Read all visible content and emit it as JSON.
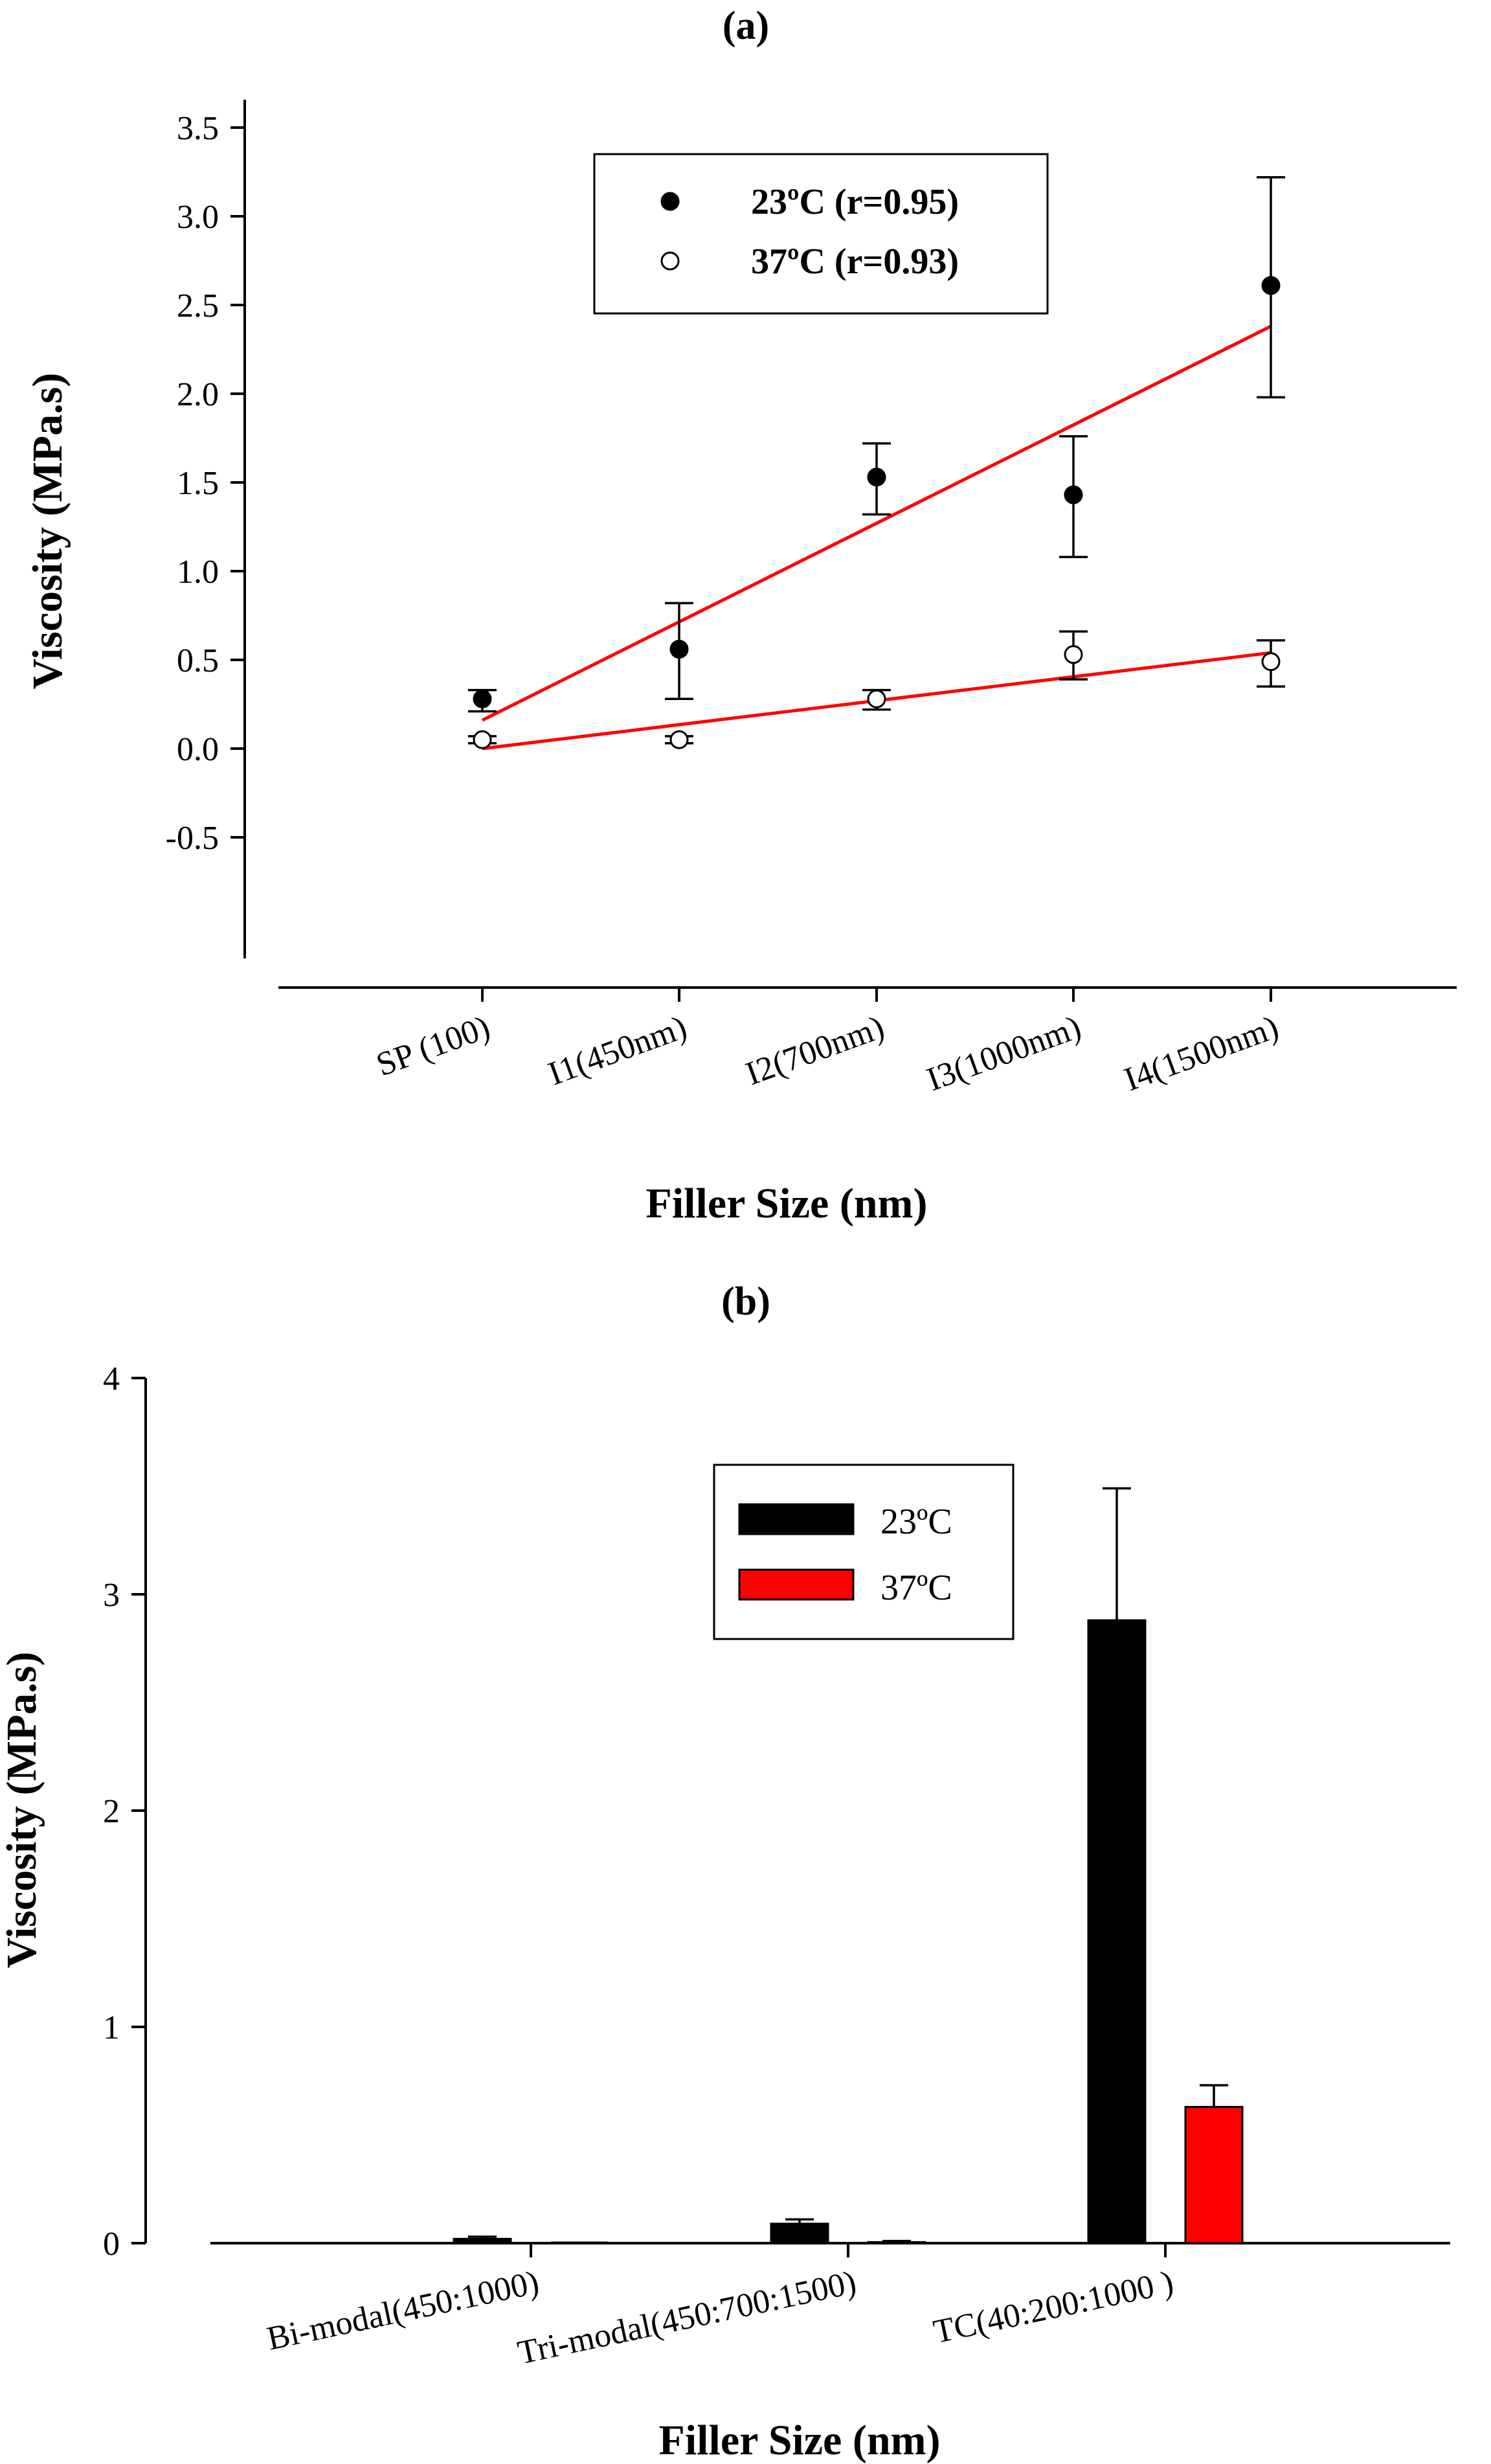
{
  "chart_data": [
    {
      "type": "scatter",
      "panel_label": "(a)",
      "xlabel": "Filler Size (nm)",
      "ylabel": "Viscosity (MPa.s)",
      "ylim": [
        -0.5,
        3.5
      ],
      "yticks": [
        "-0.5",
        "0.0",
        "0.5",
        "1.0",
        "1.5",
        "2.0",
        "2.5",
        "3.0",
        "3.5"
      ],
      "categories": [
        "SP (100)",
        "I1(450nm)",
        "I2(700nm)",
        "I3(1000nm)",
        "I4(1500nm)"
      ],
      "grid": false,
      "legend_position": "top-center",
      "series": [
        {
          "name": "23ºC (r=0.95)",
          "marker": "filled-circle",
          "color": "#000000",
          "values": [
            0.28,
            0.56,
            1.53,
            1.43,
            2.61
          ],
          "error_upper": [
            0.33,
            0.82,
            1.72,
            1.76,
            3.22
          ],
          "error_lower": [
            0.21,
            0.28,
            1.32,
            1.08,
            1.98
          ],
          "fit_line": {
            "color": "#ff0000",
            "start": 0.16,
            "end": 2.38
          }
        },
        {
          "name": "37ºC (r=0.93)",
          "marker": "open-circle",
          "color": "#000000",
          "values": [
            0.05,
            0.05,
            0.28,
            0.53,
            0.49
          ],
          "error_upper": [
            0.07,
            0.07,
            0.33,
            0.66,
            0.61
          ],
          "error_lower": [
            0.03,
            0.03,
            0.22,
            0.39,
            0.35
          ],
          "fit_line": {
            "color": "#ff0000",
            "start": 0.0,
            "end": 0.54
          }
        }
      ]
    },
    {
      "type": "bar",
      "panel_label": "(b)",
      "xlabel": "Filler Size (nm)",
      "ylabel": "Viscosity (MPa.s)",
      "ylim": [
        0,
        4
      ],
      "yticks": [
        "0",
        "1",
        "2",
        "3",
        "4"
      ],
      "categories": [
        "Bi-modal(450:1000)",
        "Tri-modal(450:700:1500)",
        "TC(40:200:1000 )"
      ],
      "grid": false,
      "legend_position": "top-center",
      "series": [
        {
          "name": "23ºC",
          "color": "#000000",
          "values": [
            0.02,
            0.09,
            2.88
          ],
          "error_upper": [
            0.03,
            0.11,
            3.49
          ]
        },
        {
          "name": "37ºC",
          "color": "#ff0000",
          "values": [
            0.0,
            0.005,
            0.63
          ],
          "error_upper": [
            0.0,
            0.01,
            0.73
          ]
        }
      ]
    }
  ]
}
